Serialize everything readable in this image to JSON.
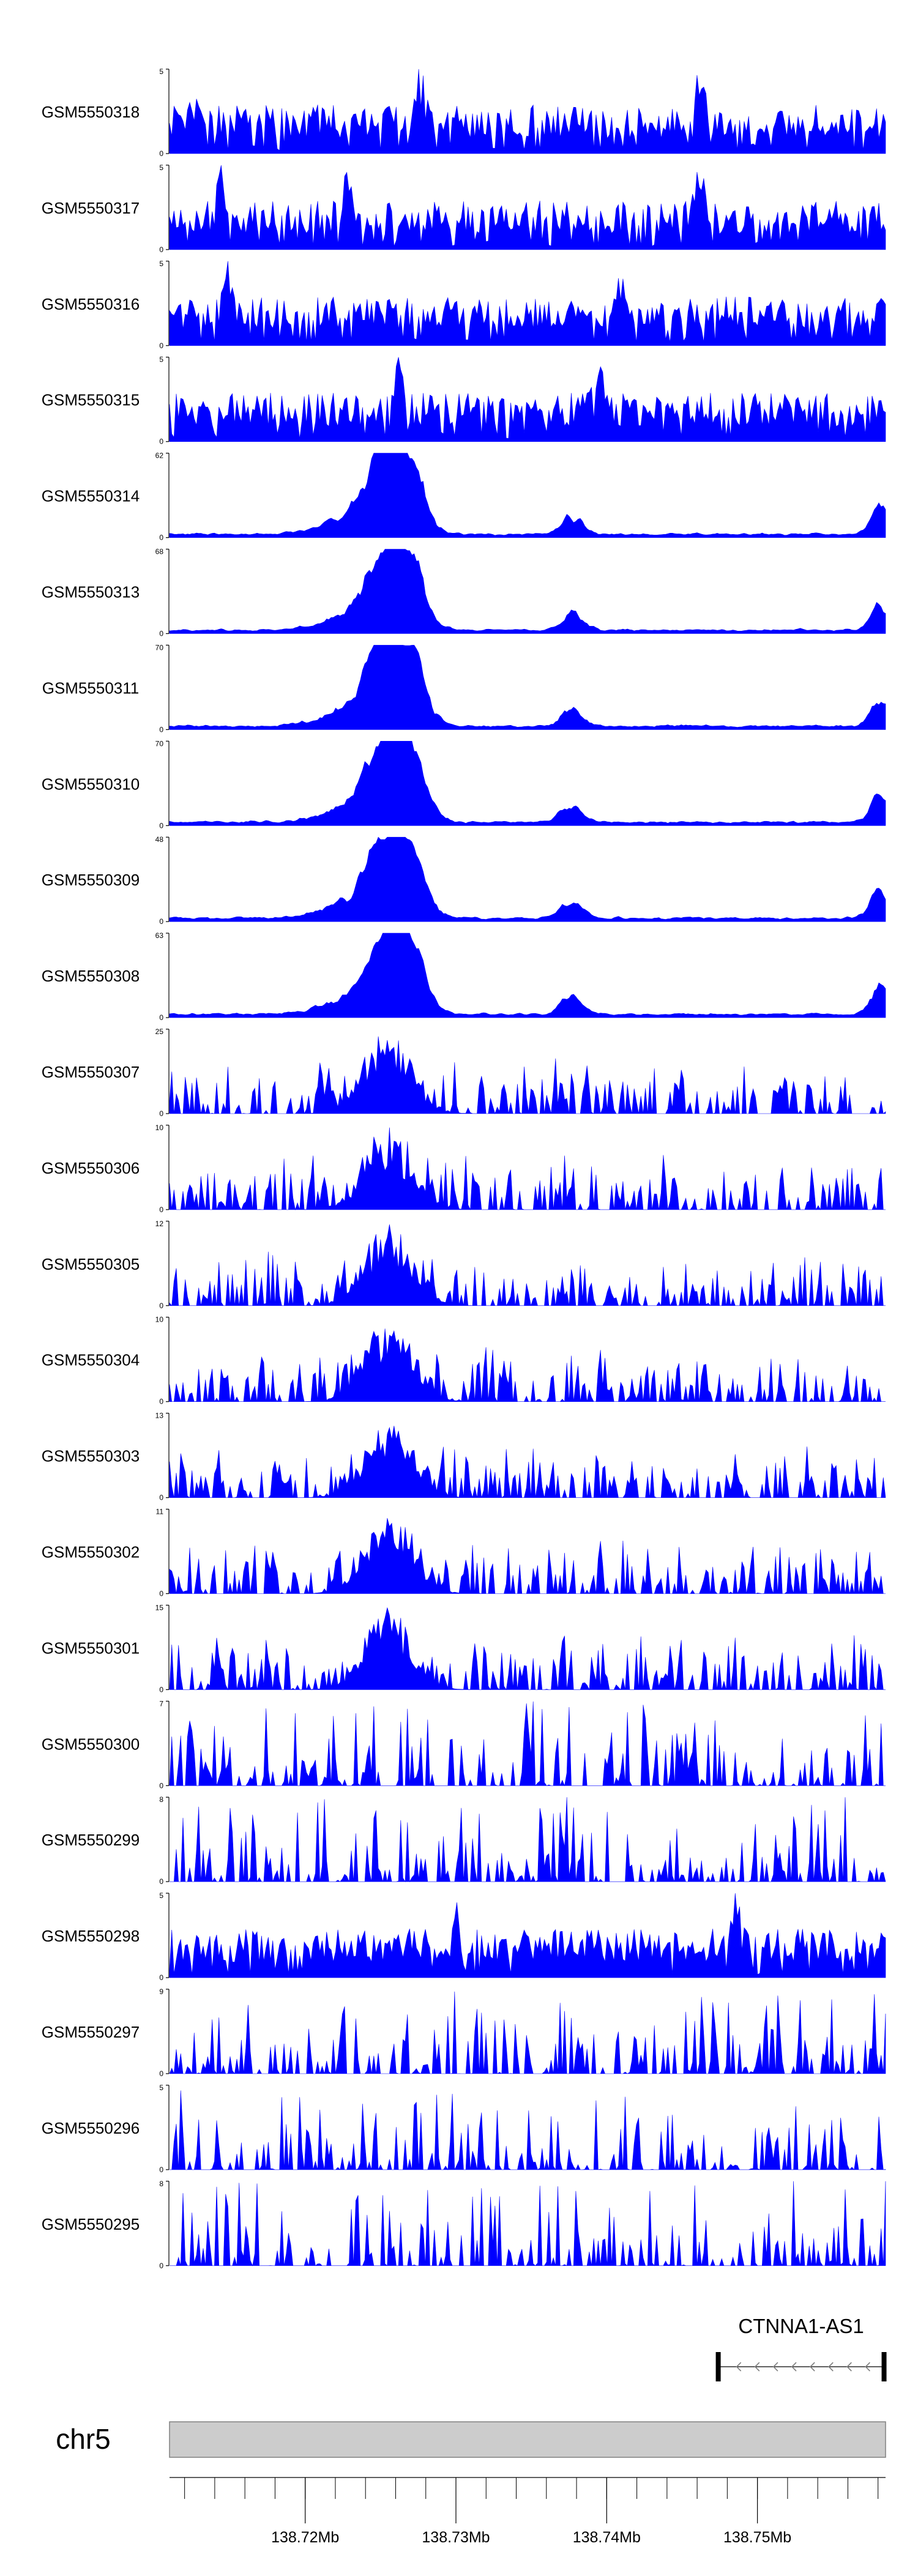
{
  "colors": {
    "track_fill": "#0000ff",
    "axis": "#000000",
    "ideogram_fill": "#cccccc",
    "ideogram_stroke": "#808080",
    "gene": "#000000",
    "background": "#ffffff"
  },
  "chart_data": {
    "type": "area",
    "tracks": [
      {
        "name": "GSM5550318",
        "ymax": "5",
        "profile": "noisy",
        "hot": [
          0.04,
          0.35,
          0.74
        ]
      },
      {
        "name": "GSM5550317",
        "ymax": "5",
        "profile": "noisy",
        "hot": [
          0.07,
          0.25,
          0.74
        ]
      },
      {
        "name": "GSM5550316",
        "ymax": "5",
        "profile": "noisy",
        "hot": [
          0.08,
          0.63
        ]
      },
      {
        "name": "GSM5550315",
        "ymax": "5",
        "profile": "noisy",
        "hot": [
          0.32,
          0.6
        ]
      },
      {
        "name": "GSM5550314",
        "ymax": "62",
        "profile": "peaked"
      },
      {
        "name": "GSM5550313",
        "ymax": "68",
        "profile": "peaked"
      },
      {
        "name": "GSM5550311",
        "ymax": "70",
        "profile": "peaked"
      },
      {
        "name": "GSM5550310",
        "ymax": "70",
        "profile": "peaked"
      },
      {
        "name": "GSM5550309",
        "ymax": "48",
        "profile": "peaked"
      },
      {
        "name": "GSM5550308",
        "ymax": "63",
        "profile": "peaked"
      },
      {
        "name": "GSM5550307",
        "ymax": "25",
        "profile": "sparse"
      },
      {
        "name": "GSM5550306",
        "ymax": "10",
        "profile": "sparse"
      },
      {
        "name": "GSM5550305",
        "ymax": "12",
        "profile": "sparse"
      },
      {
        "name": "GSM5550304",
        "ymax": "10",
        "profile": "sparse"
      },
      {
        "name": "GSM5550303",
        "ymax": "13",
        "profile": "sparse"
      },
      {
        "name": "GSM5550302",
        "ymax": "11",
        "profile": "sparse"
      },
      {
        "name": "GSM5550301",
        "ymax": "15",
        "profile": "sparse"
      },
      {
        "name": "GSM5550300",
        "ymax": "7",
        "profile": "spiky"
      },
      {
        "name": "GSM5550299",
        "ymax": "8",
        "profile": "spiky"
      },
      {
        "name": "GSM5550298",
        "ymax": "5",
        "profile": "noisy",
        "hot": [
          0.4,
          0.79
        ]
      },
      {
        "name": "GSM5550297",
        "ymax": "9",
        "profile": "spiky"
      },
      {
        "name": "GSM5550296",
        "ymax": "5",
        "profile": "spiky"
      },
      {
        "name": "GSM5550295",
        "ymax": "8",
        "profile": "spiky"
      }
    ],
    "ymin_label": "0",
    "x_range_mb": [
      138.711,
      138.7585
    ],
    "major_ticks_mb": [
      138.72,
      138.73,
      138.74,
      138.75
    ],
    "tick_labels": [
      "138.72Mb",
      "138.73Mb",
      "138.74Mb",
      "138.75Mb"
    ],
    "minor_tick_step_mb": 0.002,
    "peak_regions_mb": [
      {
        "center": 138.7257,
        "width": 0.0018,
        "weight": 1.0
      },
      {
        "center": 138.7266,
        "width": 0.0015,
        "weight": 0.6
      },
      {
        "center": 138.7239,
        "width": 0.003,
        "weight": 0.25
      },
      {
        "center": 138.7377,
        "width": 0.001,
        "weight": 0.22
      },
      {
        "center": 138.7581,
        "width": 0.0008,
        "weight": 0.35
      }
    ],
    "chromosome": "chr5",
    "gene": {
      "name": "CTNNA1-AS1",
      "start_mb": 138.7474,
      "end_mb": 138.7584,
      "strand": "-"
    }
  }
}
